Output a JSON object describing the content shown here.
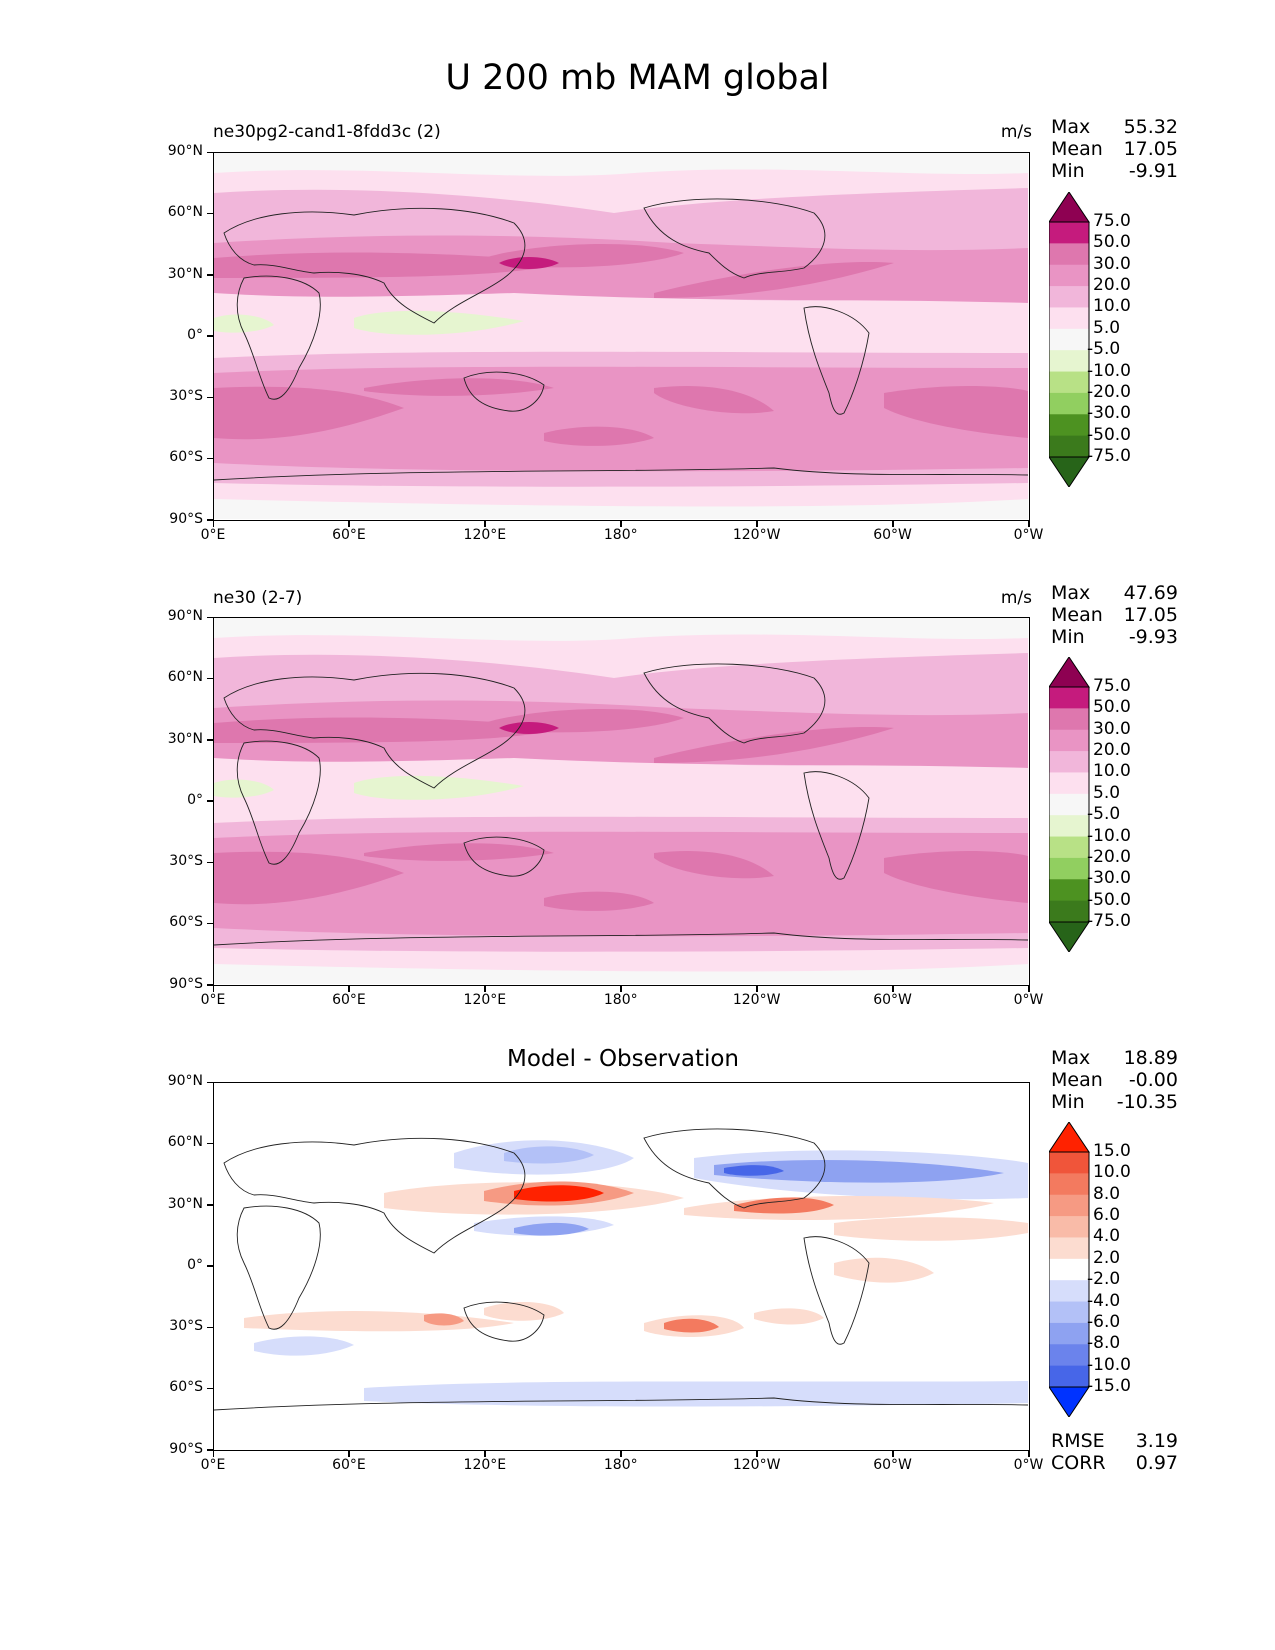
{
  "figure_title": "U 200 mb MAM global",
  "chart_data": [
    {
      "type": "heatmap",
      "title": "ne30pg2-cand1-8fdd3c (2)",
      "units": "m/s",
      "stats": {
        "max_label": "Max",
        "max": "55.32",
        "mean_label": "Mean",
        "mean": "17.05",
        "min_label": "Min",
        "min": "-9.91"
      },
      "x_ticks": [
        "0°E",
        "60°E",
        "120°E",
        "180°",
        "120°W",
        "60°W",
        "0°W"
      ],
      "y_ticks": [
        "90°N",
        "60°N",
        "30°N",
        "0°",
        "30°S",
        "60°S",
        "90°S"
      ],
      "xlim": [
        0,
        360
      ],
      "ylim": [
        -90,
        90
      ],
      "colorbar_levels": [
        "75.0",
        "50.0",
        "30.0",
        "20.0",
        "10.0",
        "5.0",
        "-5.0",
        "-10.0",
        "-20.0",
        "-30.0",
        "-50.0",
        "-75.0"
      ],
      "colorbar_colors": [
        "#8e0152",
        "#c51b7d",
        "#de77ae",
        "#e994c4",
        "#f1b6da",
        "#fde0ef",
        "#f7f7f7",
        "#e6f5d0",
        "#b8e186",
        "#91cf60",
        "#4d9221",
        "#3b7a1c",
        "#276419"
      ]
    },
    {
      "type": "heatmap",
      "title": "ne30 (2-7)",
      "units": "m/s",
      "stats": {
        "max_label": "Max",
        "max": "47.69",
        "mean_label": "Mean",
        "mean": "17.05",
        "min_label": "Min",
        "min": "-9.93"
      },
      "x_ticks": [
        "0°E",
        "60°E",
        "120°E",
        "180°",
        "120°W",
        "60°W",
        "0°W"
      ],
      "y_ticks": [
        "90°N",
        "60°N",
        "30°N",
        "0°",
        "30°S",
        "60°S",
        "90°S"
      ],
      "xlim": [
        0,
        360
      ],
      "ylim": [
        -90,
        90
      ],
      "colorbar_levels": [
        "75.0",
        "50.0",
        "30.0",
        "20.0",
        "10.0",
        "5.0",
        "-5.0",
        "-10.0",
        "-20.0",
        "-30.0",
        "-50.0",
        "-75.0"
      ],
      "colorbar_colors": [
        "#8e0152",
        "#c51b7d",
        "#de77ae",
        "#e994c4",
        "#f1b6da",
        "#fde0ef",
        "#f7f7f7",
        "#e6f5d0",
        "#b8e186",
        "#91cf60",
        "#4d9221",
        "#3b7a1c",
        "#276419"
      ]
    },
    {
      "type": "heatmap",
      "title": "Model - Observation",
      "units": "",
      "stats": {
        "max_label": "Max",
        "max": "18.89",
        "mean_label": "Mean",
        "mean": "-0.00",
        "min_label": "Min",
        "min": "-10.35"
      },
      "metrics": {
        "rmse_label": "RMSE",
        "rmse": "3.19",
        "corr_label": "CORR",
        "corr": "0.97"
      },
      "x_ticks": [
        "0°E",
        "60°E",
        "120°E",
        "180°",
        "120°W",
        "60°W",
        "0°W"
      ],
      "y_ticks": [
        "90°N",
        "60°N",
        "30°N",
        "0°",
        "30°S",
        "60°S",
        "90°S"
      ],
      "xlim": [
        0,
        360
      ],
      "ylim": [
        -90,
        90
      ],
      "colorbar_levels": [
        "15.0",
        "10.0",
        "8.0",
        "6.0",
        "4.0",
        "2.0",
        "-2.0",
        "-4.0",
        "-6.0",
        "-8.0",
        "-10.0",
        "-15.0"
      ],
      "colorbar_colors": [
        "#ff2200",
        "#f0553a",
        "#f37a5f",
        "#f69a83",
        "#f9bba8",
        "#fcdcd0",
        "#ffffff",
        "#d6ddfb",
        "#b3c1f7",
        "#8ea2f1",
        "#6b83ec",
        "#4766e8",
        "#0033ff"
      ]
    }
  ]
}
